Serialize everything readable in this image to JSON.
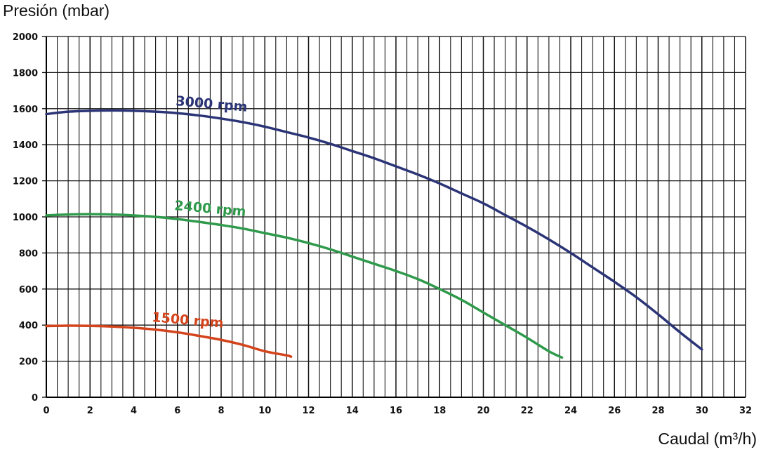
{
  "chart_data": {
    "type": "line",
    "title": "",
    "xlabel": "Caudal (m³/h)",
    "ylabel": "Presión (mbar)",
    "xlim": [
      0,
      32
    ],
    "ylim": [
      0,
      2000
    ],
    "x_ticks": [
      "0",
      "2",
      "4",
      "6",
      "8",
      "10",
      "12",
      "14",
      "16",
      "18",
      "20",
      "22",
      "24",
      "26",
      "28",
      "30",
      "32"
    ],
    "y_ticks": [
      "0",
      "200",
      "400",
      "600",
      "800",
      "1000",
      "1200",
      "1400",
      "1600",
      "1800",
      "2000"
    ],
    "grid": true,
    "series": [
      {
        "name": "3000 rpm",
        "color": "#2b3476",
        "x": [
          0,
          1,
          2,
          3,
          4,
          5,
          6,
          7,
          8,
          9,
          10,
          11,
          12,
          13,
          14,
          15,
          16,
          17,
          18,
          19,
          20,
          21,
          22,
          23,
          24,
          25,
          26,
          27,
          28,
          29,
          30
        ],
        "y": [
          1570,
          1583,
          1588,
          1590,
          1588,
          1583,
          1575,
          1562,
          1545,
          1525,
          1500,
          1470,
          1440,
          1405,
          1365,
          1325,
          1280,
          1235,
          1185,
          1130,
          1075,
          1010,
          945,
          875,
          800,
          720,
          640,
          555,
          460,
          360,
          265
        ]
      },
      {
        "name": "2400 rpm",
        "color": "#2f9a4b",
        "x": [
          0,
          1,
          2,
          3,
          4,
          5,
          6,
          7,
          8,
          9,
          10,
          11,
          12,
          13,
          14,
          15,
          16,
          17,
          18,
          19,
          20,
          21,
          22,
          23,
          23.6
        ],
        "y": [
          1008,
          1013,
          1015,
          1013,
          1008,
          1000,
          988,
          972,
          955,
          935,
          910,
          885,
          855,
          820,
          780,
          740,
          700,
          655,
          600,
          540,
          470,
          400,
          330,
          255,
          220
        ]
      },
      {
        "name": "1500 rpm",
        "color": "#d4441c",
        "x": [
          0,
          1,
          2,
          3,
          4,
          5,
          6,
          7,
          8,
          9,
          10,
          11,
          11.2
        ],
        "y": [
          395,
          397,
          396,
          392,
          385,
          375,
          360,
          340,
          318,
          290,
          255,
          232,
          225
        ]
      }
    ]
  }
}
